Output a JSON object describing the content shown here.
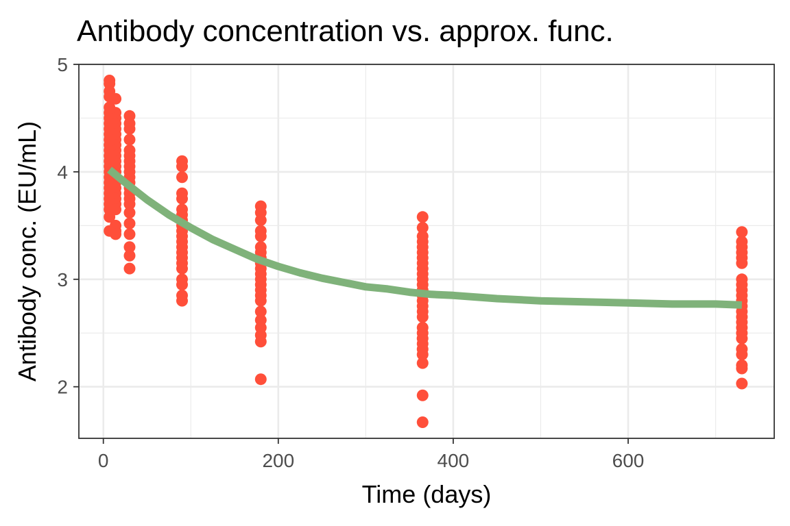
{
  "chart_data": {
    "type": "scatter",
    "title": "Antibody concentration vs. approx. func.",
    "xlabel": "Time (days)",
    "ylabel": "Antibody conc. (EU/mL)",
    "xlim": [
      -28,
      767
    ],
    "ylim": [
      1.52,
      5.0
    ],
    "x_ticks": [
      0,
      200,
      400,
      600
    ],
    "x_tick_labels": [
      "0",
      "200",
      "400",
      "600"
    ],
    "y_ticks": [
      2,
      3,
      4,
      5
    ],
    "y_tick_labels": [
      "2",
      "3",
      "4",
      "5"
    ],
    "grid": true,
    "colors": {
      "points": "#ff4f3a",
      "curve": "#7fb27a",
      "grid": "#ebebeb",
      "panel_border": "#333333"
    },
    "series": [
      {
        "kind": "points",
        "points": [
          [
            7,
            4.85
          ],
          [
            7,
            4.82
          ],
          [
            7,
            4.75
          ],
          [
            7,
            4.7
          ],
          [
            7,
            4.6
          ],
          [
            7,
            4.55
          ],
          [
            7,
            4.5
          ],
          [
            7,
            4.45
          ],
          [
            7,
            4.4
          ],
          [
            7,
            4.35
          ],
          [
            7,
            4.3
          ],
          [
            7,
            4.25
          ],
          [
            7,
            4.2
          ],
          [
            7,
            4.15
          ],
          [
            7,
            4.1
          ],
          [
            7,
            4.05
          ],
          [
            7,
            4.0
          ],
          [
            7,
            3.95
          ],
          [
            7,
            3.9
          ],
          [
            7,
            3.85
          ],
          [
            7,
            3.8
          ],
          [
            7,
            3.75
          ],
          [
            7,
            3.7
          ],
          [
            7,
            3.65
          ],
          [
            7,
            3.58
          ],
          [
            7,
            3.45
          ],
          [
            14,
            4.68
          ],
          [
            14,
            4.55
          ],
          [
            14,
            4.5
          ],
          [
            14,
            4.45
          ],
          [
            14,
            4.4
          ],
          [
            14,
            4.35
          ],
          [
            14,
            4.3
          ],
          [
            14,
            4.25
          ],
          [
            14,
            4.2
          ],
          [
            14,
            4.15
          ],
          [
            14,
            4.1
          ],
          [
            14,
            4.05
          ],
          [
            14,
            4.0
          ],
          [
            14,
            3.95
          ],
          [
            14,
            3.9
          ],
          [
            14,
            3.85
          ],
          [
            14,
            3.8
          ],
          [
            14,
            3.75
          ],
          [
            14,
            3.7
          ],
          [
            14,
            3.65
          ],
          [
            14,
            3.5
          ],
          [
            14,
            3.45
          ],
          [
            14,
            3.42
          ],
          [
            30,
            4.52
          ],
          [
            30,
            4.45
          ],
          [
            30,
            4.4
          ],
          [
            30,
            4.3
          ],
          [
            30,
            4.2
          ],
          [
            30,
            4.15
          ],
          [
            30,
            4.1
          ],
          [
            30,
            4.05
          ],
          [
            30,
            4.0
          ],
          [
            30,
            3.95
          ],
          [
            30,
            3.9
          ],
          [
            30,
            3.85
          ],
          [
            30,
            3.8
          ],
          [
            30,
            3.75
          ],
          [
            30,
            3.7
          ],
          [
            30,
            3.62
          ],
          [
            30,
            3.52
          ],
          [
            30,
            3.42
          ],
          [
            30,
            3.3
          ],
          [
            30,
            3.22
          ],
          [
            30,
            3.1
          ],
          [
            90,
            4.1
          ],
          [
            90,
            4.05
          ],
          [
            90,
            3.95
          ],
          [
            90,
            3.8
          ],
          [
            90,
            3.75
          ],
          [
            90,
            3.65
          ],
          [
            90,
            3.6
          ],
          [
            90,
            3.55
          ],
          [
            90,
            3.5
          ],
          [
            90,
            3.45
          ],
          [
            90,
            3.4
          ],
          [
            90,
            3.35
          ],
          [
            90,
            3.3
          ],
          [
            90,
            3.25
          ],
          [
            90,
            3.2
          ],
          [
            90,
            3.15
          ],
          [
            90,
            3.1
          ],
          [
            90,
            3.0
          ],
          [
            90,
            2.95
          ],
          [
            90,
            2.85
          ],
          [
            90,
            2.8
          ],
          [
            180,
            3.68
          ],
          [
            180,
            3.62
          ],
          [
            180,
            3.55
          ],
          [
            180,
            3.45
          ],
          [
            180,
            3.4
          ],
          [
            180,
            3.3
          ],
          [
            180,
            3.25
          ],
          [
            180,
            3.2
          ],
          [
            180,
            3.15
          ],
          [
            180,
            3.1
          ],
          [
            180,
            3.05
          ],
          [
            180,
            3.0
          ],
          [
            180,
            2.95
          ],
          [
            180,
            2.9
          ],
          [
            180,
            2.85
          ],
          [
            180,
            2.8
          ],
          [
            180,
            2.7
          ],
          [
            180,
            2.62
          ],
          [
            180,
            2.55
          ],
          [
            180,
            2.48
          ],
          [
            180,
            2.42
          ],
          [
            180,
            2.07
          ],
          [
            365,
            3.58
          ],
          [
            365,
            3.48
          ],
          [
            365,
            3.4
          ],
          [
            365,
            3.35
          ],
          [
            365,
            3.3
          ],
          [
            365,
            3.25
          ],
          [
            365,
            3.2
          ],
          [
            365,
            3.15
          ],
          [
            365,
            3.1
          ],
          [
            365,
            3.05
          ],
          [
            365,
            3.0
          ],
          [
            365,
            2.95
          ],
          [
            365,
            2.9
          ],
          [
            365,
            2.85
          ],
          [
            365,
            2.8
          ],
          [
            365,
            2.75
          ],
          [
            365,
            2.7
          ],
          [
            365,
            2.65
          ],
          [
            365,
            2.55
          ],
          [
            365,
            2.5
          ],
          [
            365,
            2.45
          ],
          [
            365,
            2.4
          ],
          [
            365,
            2.35
          ],
          [
            365,
            2.3
          ],
          [
            365,
            2.22
          ],
          [
            365,
            1.92
          ],
          [
            365,
            1.67
          ],
          [
            730,
            3.44
          ],
          [
            730,
            3.35
          ],
          [
            730,
            3.3
          ],
          [
            730,
            3.25
          ],
          [
            730,
            3.2
          ],
          [
            730,
            3.15
          ],
          [
            730,
            3.0
          ],
          [
            730,
            2.95
          ],
          [
            730,
            2.9
          ],
          [
            730,
            2.85
          ],
          [
            730,
            2.8
          ],
          [
            730,
            2.75
          ],
          [
            730,
            2.7
          ],
          [
            730,
            2.65
          ],
          [
            730,
            2.6
          ],
          [
            730,
            2.55
          ],
          [
            730,
            2.5
          ],
          [
            730,
            2.45
          ],
          [
            730,
            2.35
          ],
          [
            730,
            2.3
          ],
          [
            730,
            2.2
          ],
          [
            730,
            2.17
          ],
          [
            730,
            2.03
          ]
        ]
      },
      {
        "kind": "line",
        "points": [
          [
            7,
            4.02
          ],
          [
            25,
            3.9
          ],
          [
            50,
            3.74
          ],
          [
            75,
            3.6
          ],
          [
            100,
            3.48
          ],
          [
            125,
            3.37
          ],
          [
            150,
            3.28
          ],
          [
            175,
            3.19
          ],
          [
            200,
            3.12
          ],
          [
            225,
            3.06
          ],
          [
            250,
            3.01
          ],
          [
            275,
            2.97
          ],
          [
            300,
            2.93
          ],
          [
            325,
            2.91
          ],
          [
            350,
            2.88
          ],
          [
            375,
            2.86
          ],
          [
            400,
            2.85
          ],
          [
            450,
            2.82
          ],
          [
            500,
            2.8
          ],
          [
            550,
            2.79
          ],
          [
            600,
            2.78
          ],
          [
            650,
            2.77
          ],
          [
            700,
            2.77
          ],
          [
            730,
            2.76
          ]
        ]
      }
    ]
  }
}
